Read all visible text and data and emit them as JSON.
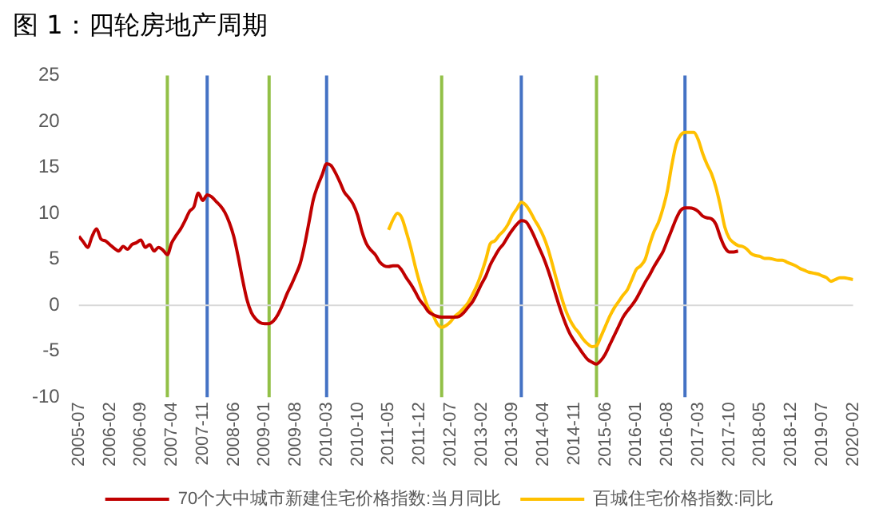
{
  "chart_data": {
    "type": "line",
    "title": "图 1：四轮房地产周期",
    "x": [
      "2005-07",
      "2005-08",
      "2005-09",
      "2005-10",
      "2005-11",
      "2005-12",
      "2006-01",
      "2006-02",
      "2006-03",
      "2006-04",
      "2006-05",
      "2006-06",
      "2006-07",
      "2006-08",
      "2006-09",
      "2006-10",
      "2006-11",
      "2006-12",
      "2007-01",
      "2007-02",
      "2007-03",
      "2007-04",
      "2007-05",
      "2007-06",
      "2007-07",
      "2007-08",
      "2007-09",
      "2007-10",
      "2007-11",
      "2007-12",
      "2008-01",
      "2008-02",
      "2008-03",
      "2008-04",
      "2008-05",
      "2008-06",
      "2008-07",
      "2008-08",
      "2008-09",
      "2008-10",
      "2008-11",
      "2008-12",
      "2009-01",
      "2009-02",
      "2009-03",
      "2009-04",
      "2009-05",
      "2009-06",
      "2009-07",
      "2009-08",
      "2009-09",
      "2009-10",
      "2009-11",
      "2009-12",
      "2010-01",
      "2010-02",
      "2010-03",
      "2010-04",
      "2010-05",
      "2010-06",
      "2010-07",
      "2010-08",
      "2010-09",
      "2010-10",
      "2010-11",
      "2010-12",
      "2011-01",
      "2011-02",
      "2011-03",
      "2011-04",
      "2011-05",
      "2011-06",
      "2011-07",
      "2011-08",
      "2011-09",
      "2011-10",
      "2011-11",
      "2011-12",
      "2012-01",
      "2012-02",
      "2012-03",
      "2012-04",
      "2012-05",
      "2012-06",
      "2012-07",
      "2012-08",
      "2012-09",
      "2012-10",
      "2012-11",
      "2012-12",
      "2013-01",
      "2013-02",
      "2013-03",
      "2013-04",
      "2013-05",
      "2013-06",
      "2013-07",
      "2013-08",
      "2013-09",
      "2013-10",
      "2013-11",
      "2013-12",
      "2014-01",
      "2014-02",
      "2014-03",
      "2014-04",
      "2014-05",
      "2014-06",
      "2014-07",
      "2014-08",
      "2014-09",
      "2014-10",
      "2014-11",
      "2014-12",
      "2015-01",
      "2015-02",
      "2015-03",
      "2015-04",
      "2015-05",
      "2015-06",
      "2015-07",
      "2015-08",
      "2015-09",
      "2015-10",
      "2015-11",
      "2015-12",
      "2016-01",
      "2016-02",
      "2016-03",
      "2016-04",
      "2016-05",
      "2016-06",
      "2016-07",
      "2016-08",
      "2016-09",
      "2016-10",
      "2016-11",
      "2016-12",
      "2017-01",
      "2017-02",
      "2017-03",
      "2017-04",
      "2017-05",
      "2017-06",
      "2017-07",
      "2017-08",
      "2017-09",
      "2017-10",
      "2017-11",
      "2017-12",
      "2018-01",
      "2018-02",
      "2018-03",
      "2018-04",
      "2018-05",
      "2018-06",
      "2018-07",
      "2018-08",
      "2018-09",
      "2018-10",
      "2018-11",
      "2018-12",
      "2019-01",
      "2019-02",
      "2019-03",
      "2019-04",
      "2019-05",
      "2019-06",
      "2019-07",
      "2019-08",
      "2019-09",
      "2019-10",
      "2019-11",
      "2019-12",
      "2020-01",
      "2020-02"
    ],
    "xlim": [
      "2005-07",
      "2020-02"
    ],
    "xticks": [
      "2005-07",
      "2006-02",
      "2006-09",
      "2007-04",
      "2007-11",
      "2008-06",
      "2009-01",
      "2009-08",
      "2010-03",
      "2010-10",
      "2011-05",
      "2011-12",
      "2012-07",
      "2013-02",
      "2013-09",
      "2014-04",
      "2014-11",
      "2015-06",
      "2016-01",
      "2016-08",
      "2017-03",
      "2017-10",
      "2018-05",
      "2018-12",
      "2019-07",
      "2020-02"
    ],
    "ylim": [
      -10,
      25
    ],
    "yticks": [
      -10,
      -5,
      0,
      5,
      10,
      15,
      20,
      25
    ],
    "legend": "bottom",
    "marker": "none",
    "series": [
      {
        "name": "70个大中城市新建住宅价格指数:当月同比",
        "color": "#c00000",
        "values": [
          7.5,
          6.9,
          6.3,
          7.5,
          8.3,
          7.2,
          7.0,
          6.6,
          6.2,
          5.9,
          6.4,
          6.1,
          6.6,
          6.8,
          7.1,
          6.3,
          6.6,
          5.9,
          6.3,
          6.0,
          5.5,
          6.8,
          7.6,
          8.3,
          9.2,
          10.2,
          10.7,
          12.2,
          11.4,
          12.0,
          11.8,
          11.3,
          10.8,
          10.1,
          9.0,
          7.5,
          5.3,
          2.8,
          0.6,
          -0.8,
          -1.5,
          -1.9,
          -2.0,
          -2.0,
          -1.7,
          -1.0,
          0.0,
          1.2,
          2.2,
          3.3,
          4.5,
          6.5,
          9.0,
          11.5,
          13.0,
          14.2,
          15.4,
          15.2,
          14.4,
          13.4,
          12.3,
          11.7,
          11.0,
          9.8,
          8.0,
          6.7,
          6.0,
          5.5,
          4.7,
          4.3,
          4.2,
          4.3,
          4.3,
          3.8,
          3.0,
          2.3,
          1.5,
          0.6,
          0.0,
          -0.7,
          -1.0,
          -1.2,
          -1.3,
          -1.3,
          -1.3,
          -1.3,
          -1.2,
          -0.8,
          -0.2,
          0.4,
          1.3,
          2.3,
          3.2,
          4.4,
          5.3,
          6.1,
          6.7,
          7.5,
          8.2,
          8.8,
          9.2,
          9.1,
          8.4,
          7.4,
          6.3,
          5.2,
          3.9,
          2.4,
          0.8,
          -0.7,
          -2.0,
          -3.1,
          -3.9,
          -4.6,
          -5.3,
          -5.9,
          -6.2,
          -6.4,
          -6.0,
          -5.3,
          -4.3,
          -3.3,
          -2.3,
          -1.3,
          -0.6,
          0.0,
          0.7,
          1.6,
          2.5,
          3.3,
          4.2,
          5.0,
          5.8,
          7.0,
          8.2,
          9.4,
          10.3,
          10.6,
          10.6,
          10.5,
          10.2,
          9.7,
          9.5,
          9.4,
          8.8,
          7.4,
          6.3,
          5.8,
          5.8,
          5.9,
          null,
          null,
          null,
          null,
          null,
          null,
          null,
          null,
          null,
          null,
          null,
          null,
          null,
          null,
          null,
          null,
          null,
          null,
          null,
          null,
          null,
          null,
          null,
          null,
          null,
          null
        ]
      },
      {
        "name": "百城住宅价格指数:同比",
        "color": "#ffc000",
        "values": [
          null,
          null,
          null,
          null,
          null,
          null,
          null,
          null,
          null,
          null,
          null,
          null,
          null,
          null,
          null,
          null,
          null,
          null,
          null,
          null,
          null,
          null,
          null,
          null,
          null,
          null,
          null,
          null,
          null,
          null,
          null,
          null,
          null,
          null,
          null,
          null,
          null,
          null,
          null,
          null,
          null,
          null,
          null,
          null,
          null,
          null,
          null,
          null,
          null,
          null,
          null,
          null,
          null,
          null,
          null,
          null,
          null,
          null,
          null,
          null,
          null,
          null,
          null,
          null,
          null,
          null,
          null,
          null,
          null,
          null,
          8.2,
          9.3,
          10.0,
          9.5,
          8.0,
          6.3,
          4.3,
          2.5,
          1.0,
          -0.3,
          -1.0,
          -2.0,
          -2.4,
          -2.2,
          -1.8,
          -1.2,
          -0.8,
          -0.3,
          0.3,
          1.2,
          2.2,
          3.5,
          5.0,
          6.7,
          7.0,
          7.6,
          8.1,
          8.8,
          9.8,
          10.5,
          11.2,
          10.9,
          10.2,
          9.3,
          8.5,
          7.5,
          6.2,
          4.5,
          2.7,
          1.0,
          -0.5,
          -1.6,
          -2.4,
          -3.0,
          -3.7,
          -4.2,
          -4.5,
          -4.4,
          -3.4,
          -2.3,
          -1.2,
          -0.3,
          0.4,
          1.1,
          1.7,
          2.8,
          3.9,
          4.3,
          5.0,
          6.6,
          8.0,
          9.0,
          10.5,
          12.4,
          15.2,
          17.5,
          18.5,
          18.8,
          18.8,
          18.8,
          18.0,
          16.5,
          15.3,
          14.3,
          12.8,
          10.8,
          8.5,
          7.3,
          6.8,
          6.5,
          6.4,
          6.1,
          5.6,
          5.4,
          5.3,
          5.1,
          5.1,
          5.0,
          4.9,
          4.9,
          4.7,
          4.5,
          4.3,
          4.0,
          3.8,
          3.6,
          3.5,
          3.4,
          3.2,
          3.0,
          2.6,
          2.8,
          3.0,
          3.0,
          2.9,
          2.8
        ]
      }
    ],
    "ref_lines": [
      {
        "axis": "x",
        "value": "2007-03",
        "color": "#92c047"
      },
      {
        "axis": "x",
        "value": "2007-12",
        "color": "#4472c4"
      },
      {
        "axis": "x",
        "value": "2009-02",
        "color": "#92c047"
      },
      {
        "axis": "x",
        "value": "2010-03",
        "color": "#4472c4"
      },
      {
        "axis": "x",
        "value": "2012-05",
        "color": "#92c047"
      },
      {
        "axis": "x",
        "value": "2013-11",
        "color": "#4472c4"
      },
      {
        "axis": "x",
        "value": "2015-04",
        "color": "#92c047"
      },
      {
        "axis": "x",
        "value": "2016-12",
        "color": "#4472c4"
      },
      {
        "axis": "y",
        "value": 0,
        "color": "#d9d9d9"
      }
    ]
  }
}
